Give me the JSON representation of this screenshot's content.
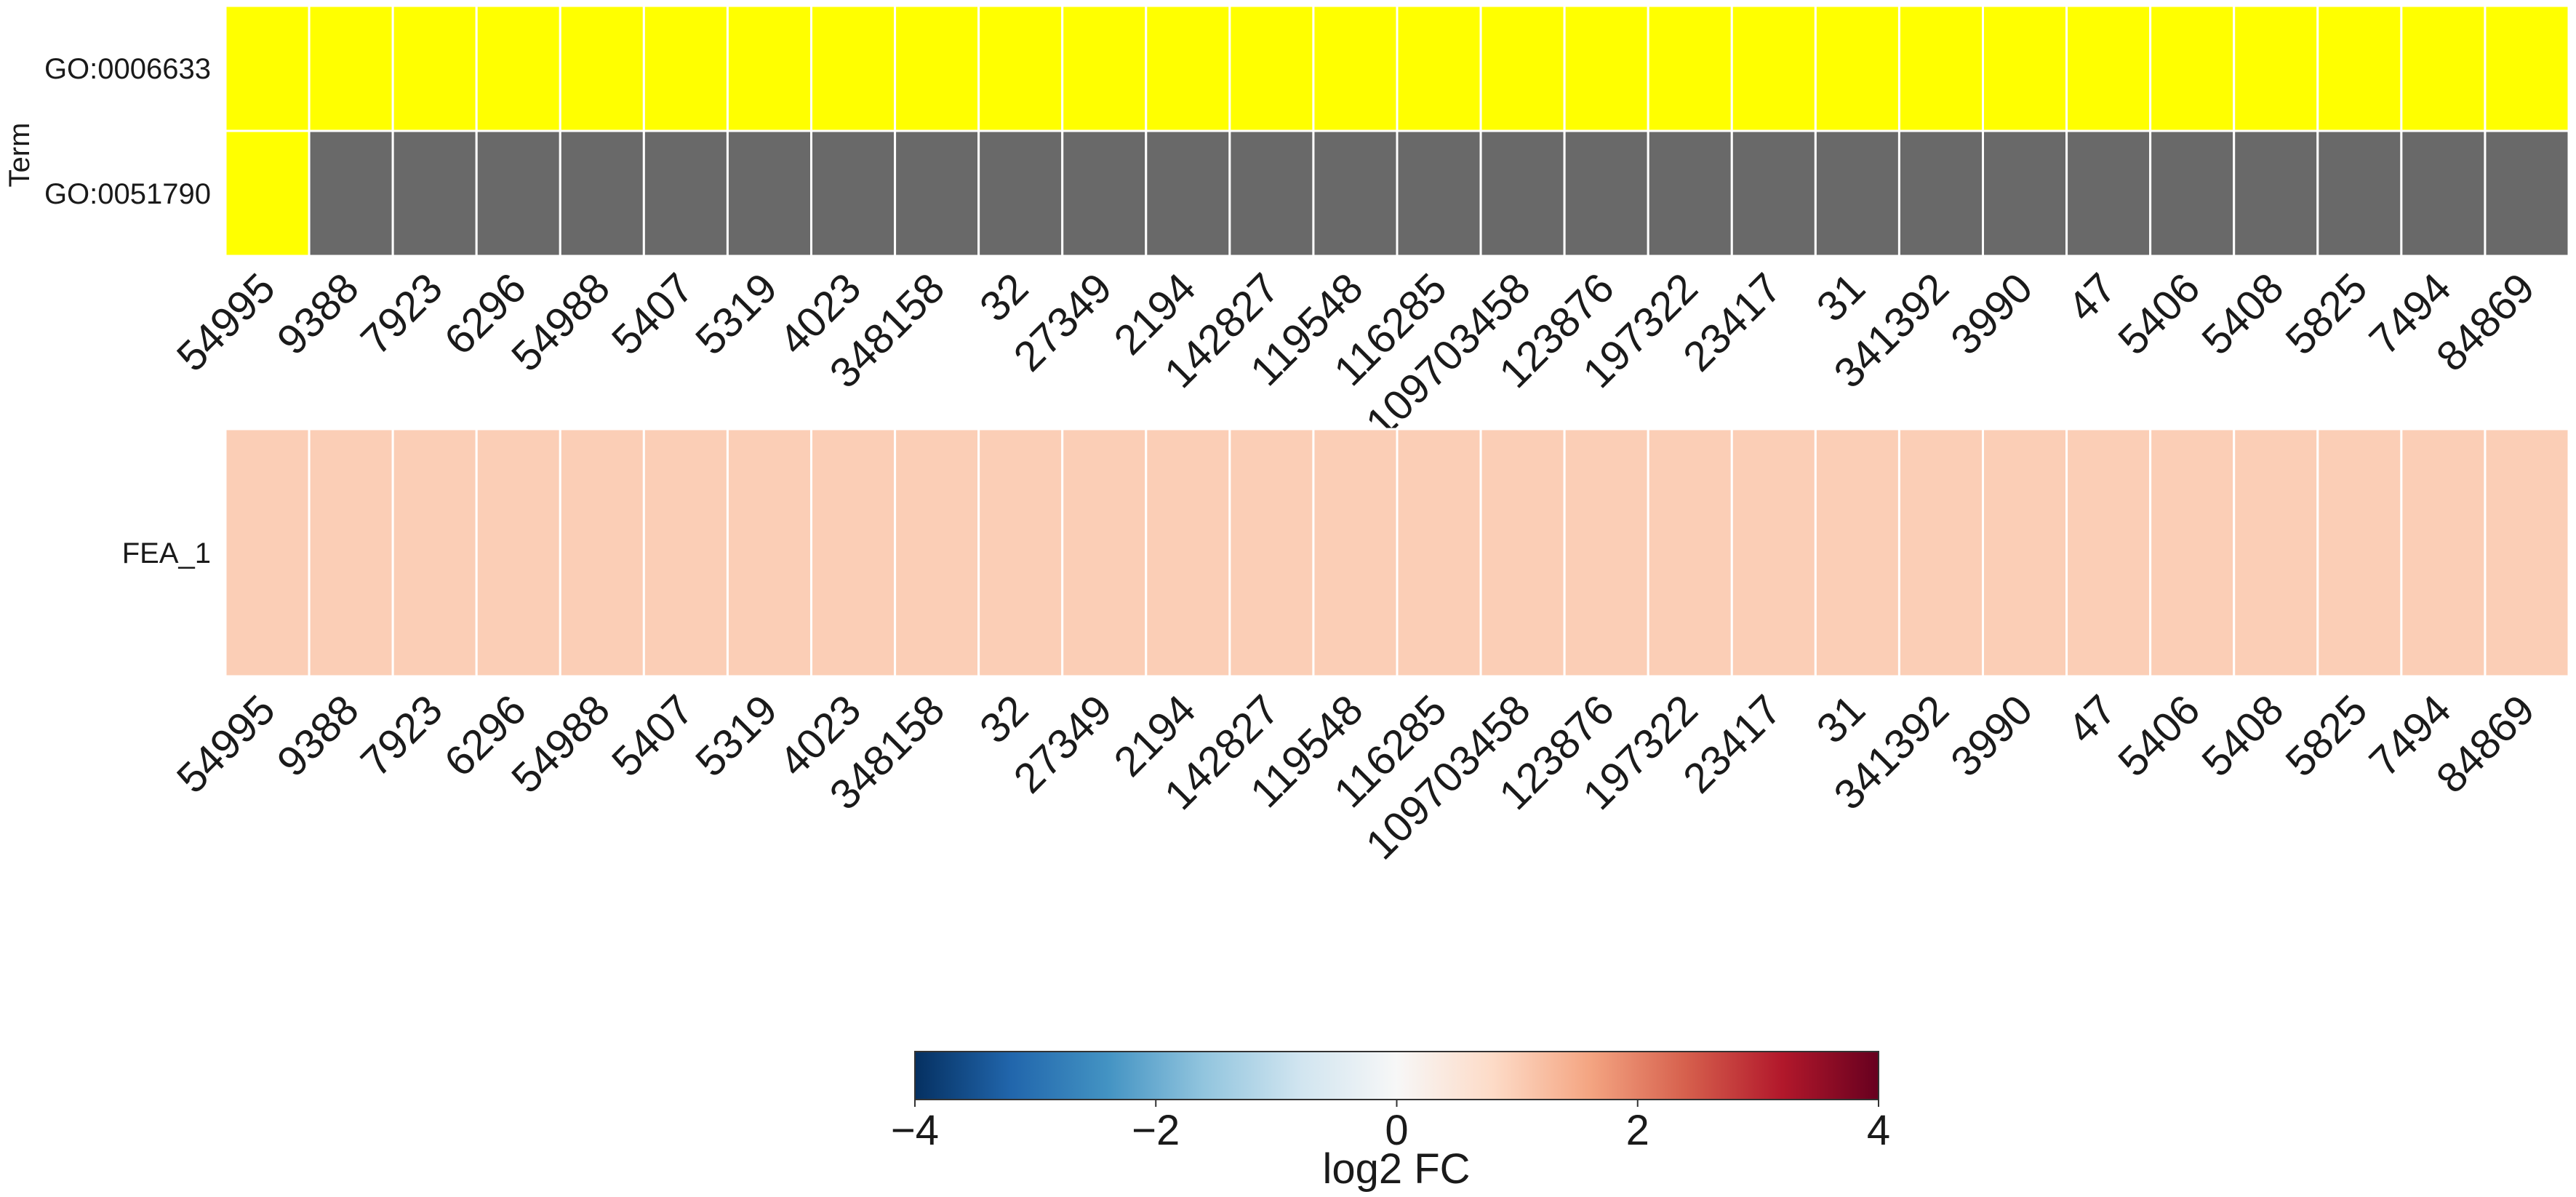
{
  "chart_data": [
    {
      "type": "heatmap",
      "ylabel": "Term",
      "x": [
        "54995",
        "9388",
        "7923",
        "6296",
        "54988",
        "5407",
        "5319",
        "4023",
        "348158",
        "32",
        "27349",
        "2194",
        "142827",
        "119548",
        "116285",
        "109703458",
        "123876",
        "197322",
        "23417",
        "31",
        "341392",
        "3990",
        "47",
        "5406",
        "5408",
        "5825",
        "7494",
        "84869"
      ],
      "rows": [
        "GO:0006633",
        "GO:0051790"
      ],
      "cells": [
        [
          1,
          1,
          1,
          1,
          1,
          1,
          1,
          1,
          1,
          1,
          1,
          1,
          1,
          1,
          1,
          1,
          1,
          1,
          1,
          1,
          1,
          1,
          1,
          1,
          1,
          1,
          1,
          1
        ],
        [
          1,
          0,
          0,
          0,
          0,
          0,
          0,
          0,
          0,
          0,
          0,
          0,
          0,
          0,
          0,
          0,
          0,
          0,
          0,
          0,
          0,
          0,
          0,
          0,
          0,
          0,
          0,
          0
        ]
      ],
      "colors": {
        "member": "#ffff00",
        "non_member": "#696969"
      }
    },
    {
      "type": "heatmap",
      "x": [
        "54995",
        "9388",
        "7923",
        "6296",
        "54988",
        "5407",
        "5319",
        "4023",
        "348158",
        "32",
        "27349",
        "2194",
        "142827",
        "119548",
        "116285",
        "109703458",
        "123876",
        "197322",
        "23417",
        "31",
        "341392",
        "3990",
        "47",
        "5406",
        "5408",
        "5825",
        "7494",
        "84869"
      ],
      "rows": [
        "FEA_1"
      ],
      "values": [
        [
          1,
          1,
          1,
          1,
          1,
          1,
          1,
          1,
          1,
          1,
          1,
          1,
          1,
          1,
          1,
          1,
          1,
          1,
          1,
          1,
          1,
          1,
          1,
          1,
          1,
          1,
          1,
          1
        ]
      ],
      "colormap": "RdBu_r",
      "colorbar": {
        "label": "log2 FC",
        "range": [
          -4,
          4
        ],
        "ticks": [
          "−4",
          "−2",
          "0",
          "2",
          "4"
        ],
        "tick_values": [
          -4,
          -2,
          0,
          2,
          4
        ],
        "stops": [
          "#053061",
          "#2166ac",
          "#4393c3",
          "#92c5de",
          "#d1e5f0",
          "#f7f7f7",
          "#fddbc7",
          "#f4a582",
          "#d6604d",
          "#b2182b",
          "#67001f"
        ]
      }
    }
  ]
}
